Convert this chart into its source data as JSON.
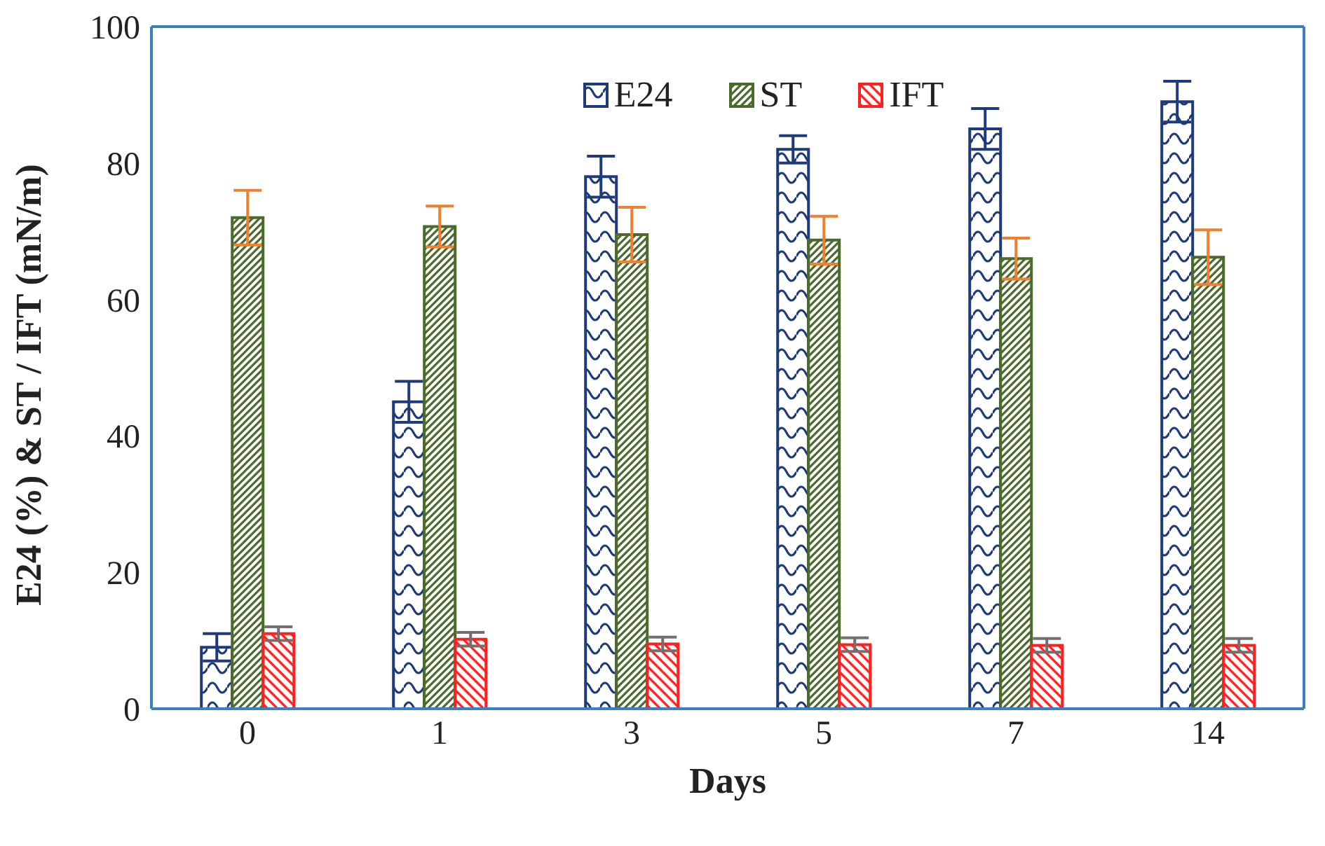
{
  "chart_data": {
    "type": "bar",
    "xlabel": "Days",
    "ylabel": "E24 (%) & ST / IFT (mN/m)",
    "categories": [
      "0",
      "1",
      "3",
      "5",
      "7",
      "14"
    ],
    "series": [
      {
        "name": "E24",
        "color": "#1f3a7a",
        "values": [
          9,
          45,
          78,
          82,
          85,
          89
        ],
        "errors": [
          2,
          3,
          3,
          2,
          3,
          3
        ]
      },
      {
        "name": "ST",
        "color": "#4a6b2a",
        "values": [
          72,
          70.7,
          69.5,
          68.7,
          66,
          66.2
        ],
        "errors": [
          4,
          3,
          4,
          3.5,
          3,
          4
        ]
      },
      {
        "name": "IFT",
        "color": "#ff2020",
        "values": [
          11,
          10.2,
          9.5,
          9.4,
          9.3,
          9.3
        ],
        "errors": [
          1,
          1,
          1,
          1,
          1,
          1
        ]
      }
    ],
    "ylim": [
      0,
      100
    ],
    "yticks": [
      0,
      20,
      40,
      60,
      80,
      100
    ],
    "grid": false,
    "legend": "top"
  }
}
